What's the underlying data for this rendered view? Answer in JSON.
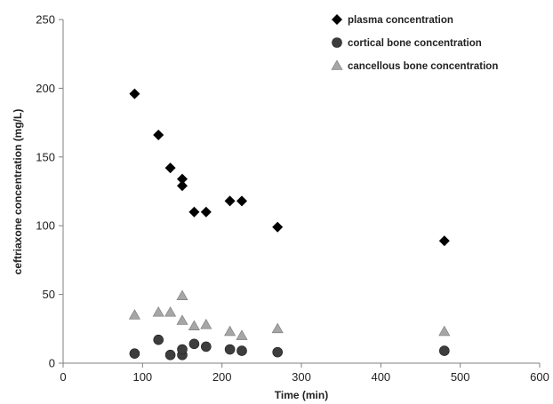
{
  "chart_data": {
    "type": "scatter",
    "title": "",
    "xlabel": "Time (min)",
    "ylabel": "ceftriaxone  concentration (mg/L)",
    "xlim": [
      0,
      600
    ],
    "ylim": [
      0,
      250
    ],
    "x_ticks": [
      "0",
      "100",
      "200",
      "300",
      "400",
      "500",
      "600"
    ],
    "y_ticks": [
      "0",
      "50",
      "100",
      "150",
      "200",
      "250"
    ],
    "grid": false,
    "legend_position": "top-right",
    "series": [
      {
        "name": "plasma concentration",
        "marker": "diamond",
        "color": "#000000",
        "points": [
          [
            90,
            196
          ],
          [
            120,
            166
          ],
          [
            135,
            142
          ],
          [
            150,
            134
          ],
          [
            150,
            129
          ],
          [
            165,
            110
          ],
          [
            180,
            110
          ],
          [
            210,
            118
          ],
          [
            225,
            118
          ],
          [
            270,
            99
          ],
          [
            480,
            89
          ]
        ]
      },
      {
        "name": "cortical bone concentration",
        "marker": "circle",
        "color": "#3d3d3d",
        "points": [
          [
            90,
            7
          ],
          [
            120,
            17
          ],
          [
            135,
            6
          ],
          [
            150,
            6
          ],
          [
            150,
            10
          ],
          [
            165,
            14
          ],
          [
            180,
            12
          ],
          [
            210,
            10
          ],
          [
            225,
            9
          ],
          [
            270,
            8
          ],
          [
            480,
            9
          ]
        ]
      },
      {
        "name": "cancellous bone concentration",
        "marker": "triangle",
        "color": "#a6a6a6",
        "points": [
          [
            90,
            35
          ],
          [
            120,
            37
          ],
          [
            135,
            37
          ],
          [
            150,
            49
          ],
          [
            150,
            31
          ],
          [
            165,
            27
          ],
          [
            180,
            28
          ],
          [
            210,
            23
          ],
          [
            225,
            20
          ],
          [
            270,
            25
          ],
          [
            480,
            23
          ]
        ]
      }
    ]
  }
}
